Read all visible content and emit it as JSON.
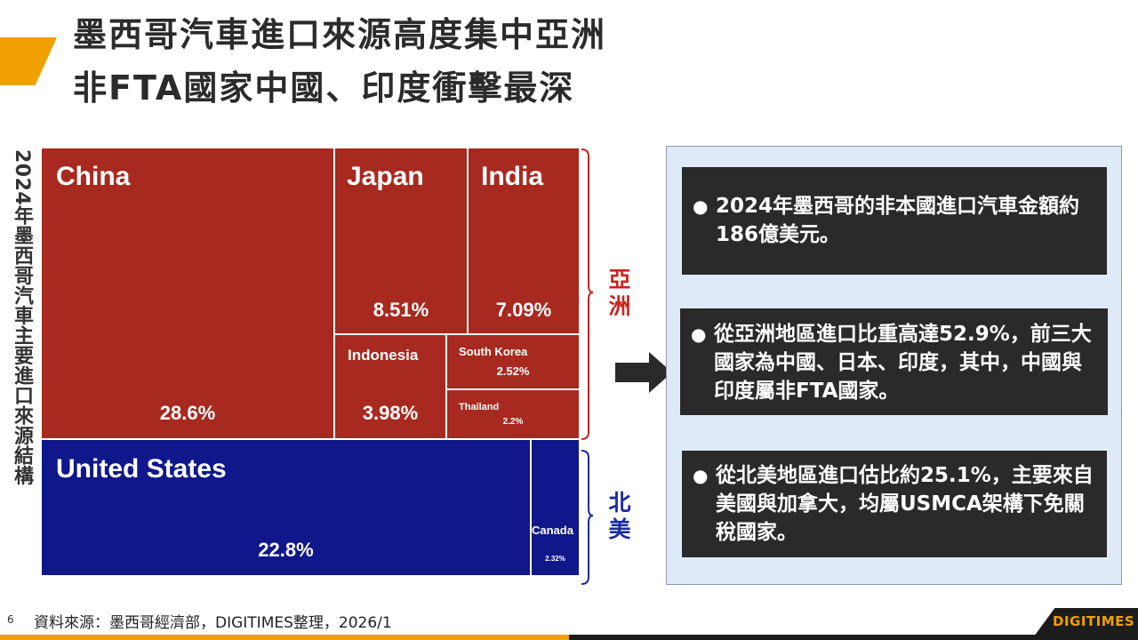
{
  "title": {
    "line1": "墨西哥汽車進口來源高度集中亞洲",
    "line2": "非FTA國家中國、印度衝擊最深"
  },
  "side_label": "2024年墨西哥汽車主要進口來源結構",
  "regions": {
    "asia": {
      "label": "亞洲",
      "color": "#c8241f"
    },
    "north_america": {
      "label": "北美",
      "color": "#1a2c9b"
    }
  },
  "chart_data": {
    "type": "treemap",
    "title": "2024年墨西哥汽車主要進口來源結構",
    "unit": "%",
    "items": [
      {
        "name": "China",
        "value": 28.6,
        "label": "28.6%",
        "region": "亞洲"
      },
      {
        "name": "Japan",
        "value": 8.51,
        "label": "8.51%",
        "region": "亞洲"
      },
      {
        "name": "India",
        "value": 7.09,
        "label": "7.09%",
        "region": "亞洲"
      },
      {
        "name": "Indonesia",
        "value": 3.98,
        "label": "3.98%",
        "region": "亞洲"
      },
      {
        "name": "South Korea",
        "value": 2.52,
        "label": "2.52%",
        "region": "亞洲"
      },
      {
        "name": "Thailand",
        "value": 2.2,
        "label": "2.2%",
        "region": "亞洲"
      },
      {
        "name": "United States",
        "value": 22.8,
        "label": "22.8%",
        "region": "北美"
      },
      {
        "name": "Canada",
        "value": 2.32,
        "label": "2.32%",
        "region": "北美"
      }
    ],
    "colors": {
      "亞洲": "#a8291f",
      "北美": "#0f178a"
    }
  },
  "notes": [
    "2024年墨西哥的非本國進口汽車金額約186億美元。",
    "從亞洲地區進口比重高達52.9%，前三大國家為中國、日本、印度，其中，中國與印度屬非FTA國家。",
    "從北美地區進口估比約25.1%，主要來自美國與加拿大，均屬USMCA架構下免關稅國家。"
  ],
  "bullet_glyph": "●",
  "footer": {
    "page_number": "6",
    "source": "資料來源：墨西哥經濟部，DIGITIMES整理，2026/1",
    "logo": "DIGITIMES"
  }
}
